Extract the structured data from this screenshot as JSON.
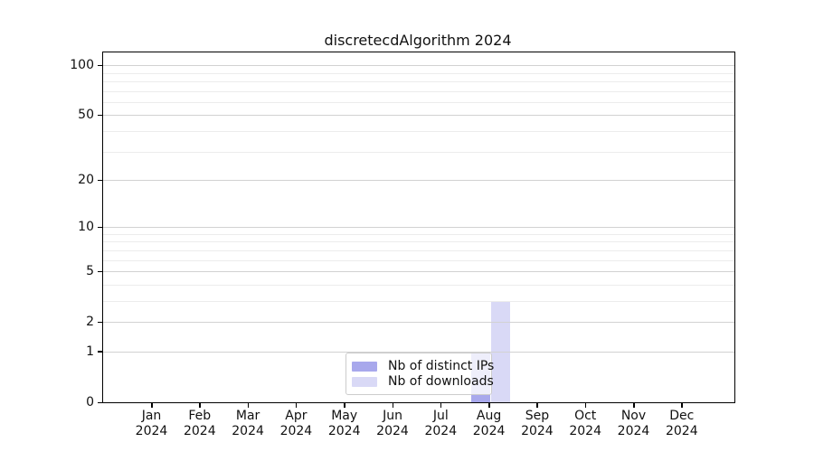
{
  "title": "discretecdAlgorithm 2024",
  "legend": {
    "items": [
      {
        "label": "Nb of distinct IPs",
        "color": "#a8a8ec"
      },
      {
        "label": "Nb of downloads",
        "color": "#d9d9f6"
      }
    ]
  },
  "chart_data": {
    "type": "bar",
    "title": "discretecdAlgorithm 2024",
    "categories": [
      "Jan 2024",
      "Feb 2024",
      "Mar 2024",
      "Apr 2024",
      "May 2024",
      "Jun 2024",
      "Jul 2024",
      "Aug 2024",
      "Sep 2024",
      "Oct 2024",
      "Nov 2024",
      "Dec 2024"
    ],
    "series": [
      {
        "name": "Nb of distinct IPs",
        "color": "#a8a8ec",
        "values": [
          0,
          0,
          0,
          0,
          0,
          0,
          0,
          1,
          0,
          0,
          0,
          0
        ]
      },
      {
        "name": "Nb of downloads",
        "color": "#d9d9f6",
        "values": [
          0,
          0,
          0,
          0,
          0,
          0,
          0,
          3,
          0,
          0,
          0,
          0
        ]
      }
    ],
    "xlabel": "",
    "ylabel": "",
    "yscale": "log1p",
    "ylim": [
      0,
      120
    ],
    "yticks": [
      0,
      1,
      2,
      5,
      10,
      20,
      50,
      100
    ],
    "minor_gridline_values": [
      3,
      4,
      6,
      7,
      8,
      9,
      30,
      40,
      60,
      70,
      80,
      90
    ],
    "grid": true,
    "legend_position": "lower center"
  }
}
